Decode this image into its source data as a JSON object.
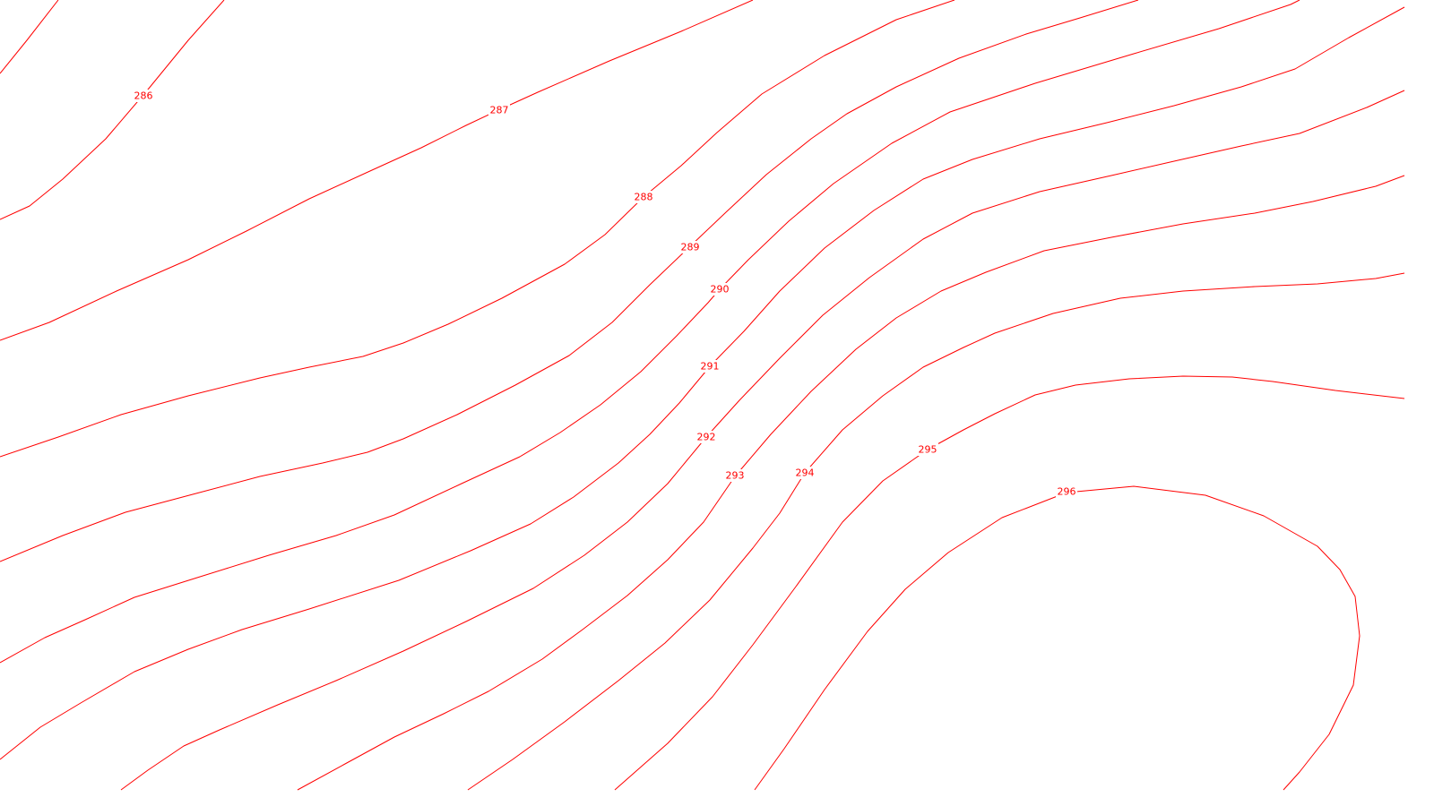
{
  "map": {
    "line_color": "#ff0000",
    "background_color": "#ffffff",
    "contours": [
      {
        "value": "286"
      },
      {
        "value": "287"
      },
      {
        "value": "288"
      },
      {
        "value": "289"
      },
      {
        "value": "290"
      },
      {
        "value": "291"
      },
      {
        "value": "292"
      },
      {
        "value": "293"
      },
      {
        "value": "294"
      },
      {
        "value": "295"
      },
      {
        "value": "296"
      }
    ]
  }
}
